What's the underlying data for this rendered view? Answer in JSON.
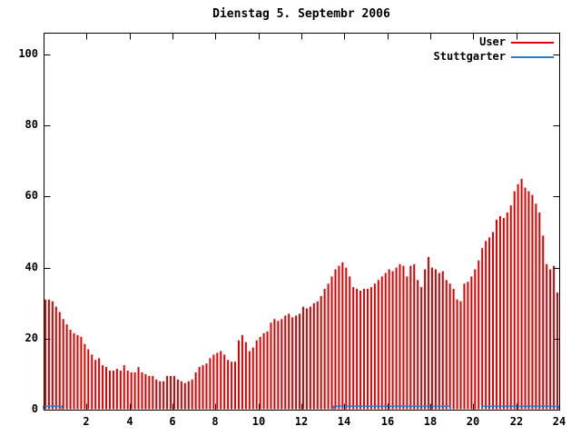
{
  "title": "Dienstag 5. Septembr 2006",
  "colors": {
    "user_series": "#e00000",
    "stuttgarter_series": "#1e7fd0",
    "frame": "#000000",
    "background": "#ffffff"
  },
  "legend": {
    "entries": [
      {
        "label": "User",
        "color": "#e00000"
      },
      {
        "label": "Stuttgarter",
        "color": "#1e7fd0"
      }
    ]
  },
  "axes": {
    "y_tick_labels": [
      "0",
      "20",
      "40",
      "60",
      "80",
      "100"
    ],
    "y_tick_values": [
      0,
      20,
      40,
      60,
      80,
      100
    ],
    "x_tick_labels": [
      "2",
      "4",
      "6",
      "8",
      "10",
      "12",
      "14",
      "16",
      "18",
      "20",
      "22",
      "24"
    ],
    "x_tick_values": [
      2,
      4,
      6,
      8,
      10,
      12,
      14,
      16,
      18,
      20,
      22,
      24
    ]
  },
  "chart_data": {
    "type": "bar",
    "title": "Dienstag 5. Septembr 2006",
    "xlabel": "",
    "ylabel": "",
    "xlim": [
      0,
      24
    ],
    "ylim": [
      0,
      106
    ],
    "x_unit": "hour of day",
    "bar_interval_minutes": 10,
    "series": [
      {
        "name": "User",
        "style": "impulses",
        "color": "#e00000",
        "values": [
          31,
          31,
          30.5,
          29,
          27.5,
          25.5,
          24,
          22.5,
          21.5,
          21,
          20.5,
          18.5,
          17,
          15.5,
          14,
          14.5,
          12.5,
          12,
          11,
          11,
          11.5,
          11,
          12.5,
          11,
          10.5,
          10.5,
          12,
          10.5,
          10,
          9.5,
          9.5,
          8.5,
          8,
          8,
          9.5,
          9.5,
          9.5,
          8.5,
          8,
          7.5,
          8,
          8.5,
          10.5,
          12,
          12.5,
          13,
          14.5,
          15.5,
          16,
          16.5,
          15.5,
          14,
          13.5,
          13.5,
          19.5,
          21,
          19,
          16.5,
          17.5,
          19.5,
          20.5,
          21.5,
          22,
          24.5,
          25.5,
          25,
          25.5,
          26.5,
          27,
          26,
          26.5,
          27,
          29,
          28.5,
          29,
          30,
          30.5,
          32,
          34,
          35.5,
          37.5,
          39.5,
          40.5,
          41.5,
          40,
          37.5,
          34.5,
          34,
          33.5,
          34,
          34,
          34.5,
          35.5,
          36.5,
          37.5,
          38.5,
          39.5,
          39,
          40,
          41,
          40.5,
          37.5,
          40.5,
          41,
          36.5,
          34.5,
          39.5,
          43,
          40,
          39.5,
          38.5,
          39,
          36.5,
          35.5,
          34,
          31,
          30.5,
          35.5,
          36,
          37.5,
          39.5,
          42,
          45.5,
          47.5,
          48.5,
          50,
          53.5,
          54.5,
          54,
          55.5,
          57.5,
          61.5,
          63.5,
          65,
          62.5,
          61.5,
          60.5,
          58,
          55.5,
          49,
          41,
          39.5,
          40.5,
          33
        ]
      },
      {
        "name": "Stuttgarter",
        "style": "line",
        "color": "#1e7fd0",
        "value": 1,
        "segments_hours": [
          [
            0.0,
            0.85
          ],
          [
            13.5,
            18.9
          ],
          [
            20.4,
            24.0
          ]
        ]
      }
    ]
  }
}
